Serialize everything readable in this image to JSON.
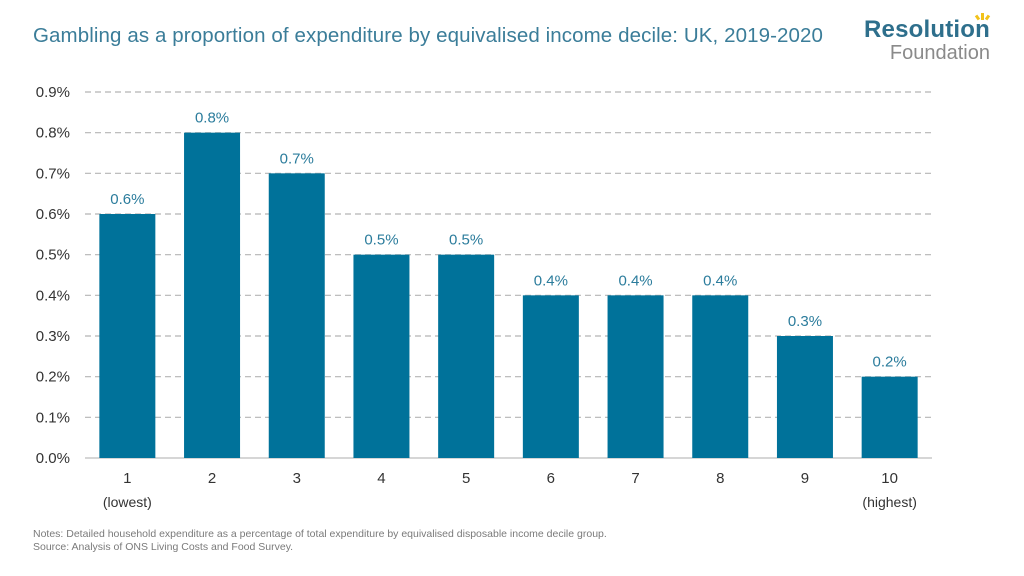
{
  "header": {
    "title": "Gambling as a proportion of expenditure by equivalised income decile: UK, 2019-2020"
  },
  "logo": {
    "word": "Resolution",
    "sub": "Foundation"
  },
  "notes": {
    "line1": "Notes: Detailed household expenditure as a percentage of total expenditure by equivalised disposable income decile group.",
    "line2": "Source: Analysis of ONS Living Costs and Food Survey."
  },
  "colors": {
    "bar": "#00729a",
    "label": "#2b7c9c",
    "axis_text": "#333333",
    "gridline": "#b5b5b5"
  },
  "chart_data": {
    "type": "bar",
    "categories": [
      "1",
      "2",
      "3",
      "4",
      "5",
      "6",
      "7",
      "8",
      "9",
      "10"
    ],
    "category_sublabels": [
      "(lowest)",
      "",
      "",
      "",
      "",
      "",
      "",
      "",
      "",
      "(highest)"
    ],
    "values": [
      0.6,
      0.8,
      0.7,
      0.5,
      0.5,
      0.4,
      0.4,
      0.4,
      0.3,
      0.2
    ],
    "data_labels": [
      "0.6%",
      "0.8%",
      "0.7%",
      "0.5%",
      "0.5%",
      "0.4%",
      "0.4%",
      "0.4%",
      "0.3%",
      "0.2%"
    ],
    "y_ticks": [
      0.0,
      0.1,
      0.2,
      0.3,
      0.4,
      0.5,
      0.6,
      0.7,
      0.8,
      0.9
    ],
    "y_tick_labels": [
      "0.0%",
      "0.1%",
      "0.2%",
      "0.3%",
      "0.4%",
      "0.5%",
      "0.6%",
      "0.7%",
      "0.8%",
      "0.9%"
    ],
    "ylim": [
      0,
      0.9
    ],
    "xlabel": "",
    "ylabel": "",
    "grid": "horizontal dashed",
    "legend": "none"
  }
}
